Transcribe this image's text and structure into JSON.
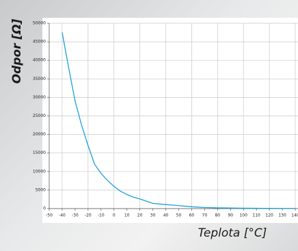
{
  "chart_data": {
    "type": "line",
    "x_label": "Teplota [°C]",
    "y_label": "Odpor [Ω]",
    "x": [
      -40,
      -35,
      -30,
      -25,
      -20,
      -15,
      -10,
      -5,
      0,
      5,
      10,
      15,
      20,
      25,
      30,
      40,
      50,
      60,
      70,
      80,
      90,
      100,
      110,
      120,
      130,
      140
    ],
    "series": [
      {
        "color": "#1a9fd8",
        "values": [
          47500,
          38000,
          29000,
          22500,
          17000,
          12000,
          9500,
          7600,
          6000,
          4700,
          3800,
          3100,
          2600,
          2000,
          1400,
          1100,
          800,
          500,
          300,
          200,
          150,
          100,
          80,
          60,
          50,
          40
        ]
      }
    ],
    "xlim": [
      -50,
      140
    ],
    "ylim": [
      0,
      50000
    ],
    "xticks": [
      -50,
      -40,
      -30,
      -20,
      -10,
      0,
      10,
      20,
      30,
      40,
      50,
      60,
      70,
      80,
      90,
      100,
      110,
      120,
      130,
      140
    ],
    "yticks": [
      0,
      5000,
      10000,
      15000,
      20000,
      25000,
      30000,
      35000,
      40000,
      45000,
      50000
    ],
    "grid": true
  }
}
